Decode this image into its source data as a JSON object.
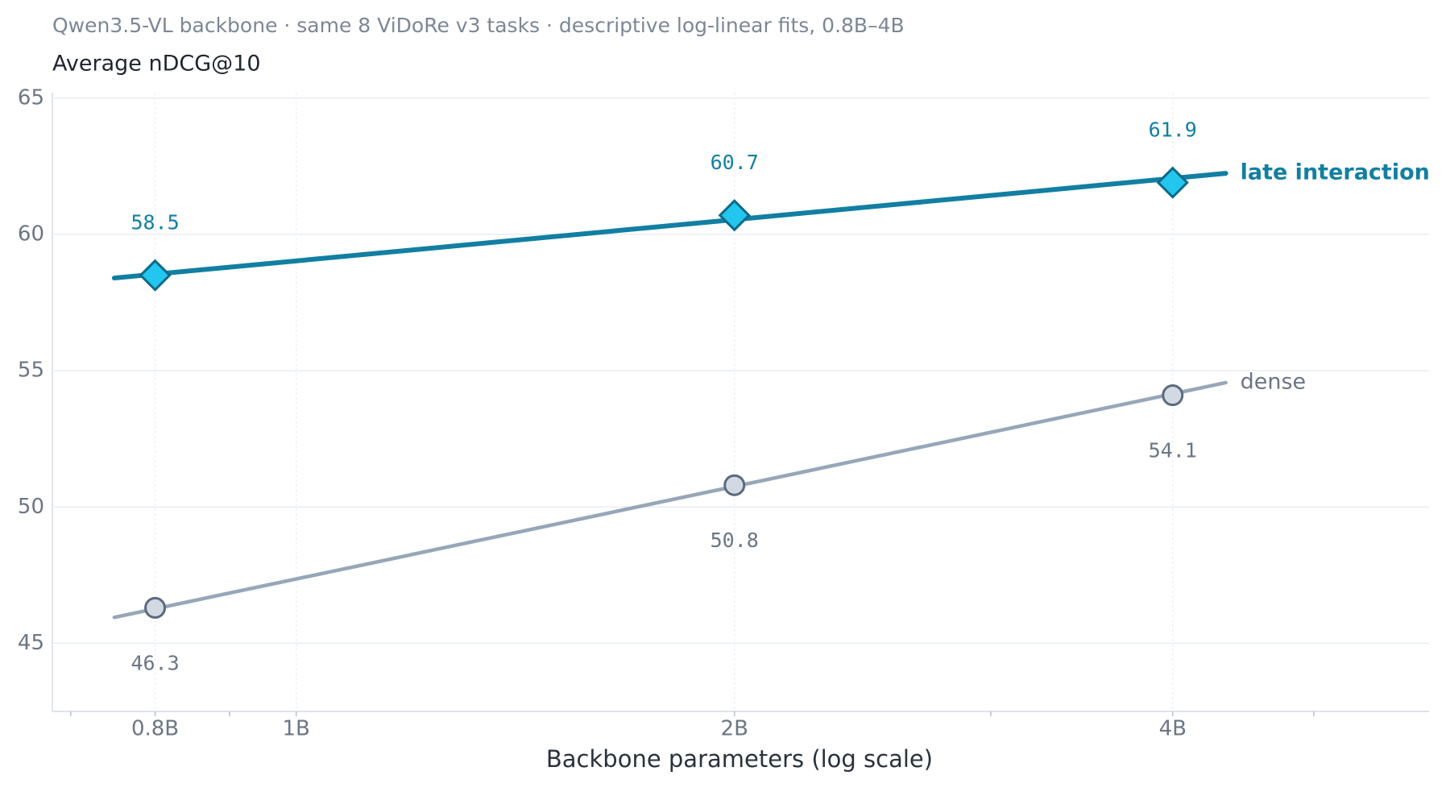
{
  "chart_data": {
    "type": "line",
    "title": "Qwen3.5-VL backbone · same 8 ViDoRe v3 tasks · descriptive log-linear fits, 0.8B–4B",
    "y_label": "Average nDCG@10",
    "x_label": "Backbone parameters (log scale)",
    "log_x": true,
    "grid": true,
    "x": [
      0.8,
      2,
      4
    ],
    "xlim": [
      0.68,
      6.0
    ],
    "xticks": [
      {
        "value": 0.8,
        "label": "0.8B"
      },
      {
        "value": 1,
        "label": "1B"
      },
      {
        "value": 2,
        "label": "2B"
      },
      {
        "value": 4,
        "label": "4B"
      }
    ],
    "xminorticks": [
      0.7,
      0.9,
      3,
      5
    ],
    "ylim": [
      42.5,
      65.2
    ],
    "yticks": [
      45,
      50,
      55,
      60,
      65
    ],
    "series": [
      {
        "name": "late interaction",
        "color": "#127fa2",
        "marker": "diamond",
        "marker_fill": "#22c6ee",
        "marker_stroke": "#0d6a88",
        "label_position": "above",
        "bold": true,
        "values": [
          58.5,
          60.7,
          61.9
        ],
        "fit": {
          "x": [
            0.75,
            4.35
          ],
          "values": [
            58.4,
            62.24
          ]
        }
      },
      {
        "name": "dense",
        "color": "#97a6b8",
        "marker": "circle",
        "marker_fill": "#d2d9e3",
        "marker_stroke": "#5b6a7e",
        "label_position": "below",
        "bold": false,
        "values": [
          46.3,
          50.8,
          54.1
        ],
        "fit": {
          "x": [
            0.75,
            4.35
          ],
          "values": [
            45.95,
            54.56
          ]
        }
      }
    ]
  }
}
